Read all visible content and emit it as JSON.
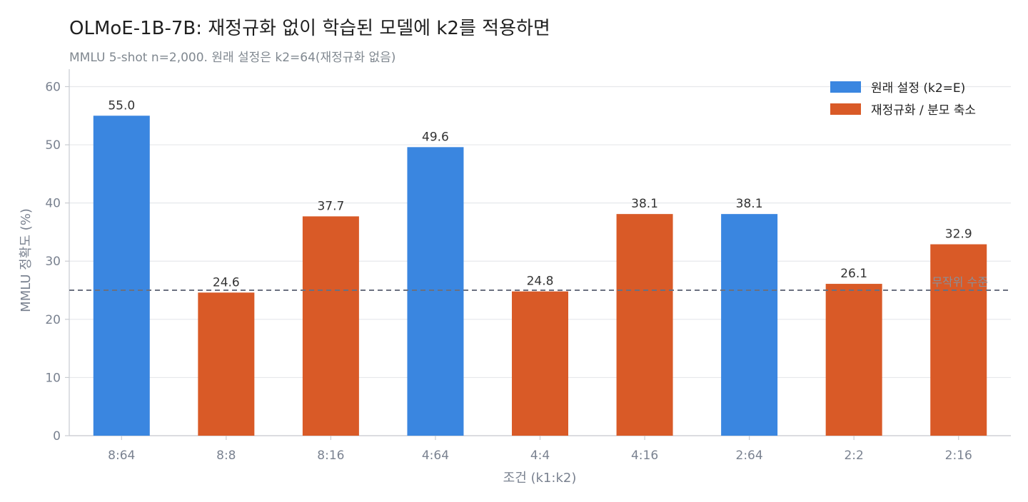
{
  "chart_data": {
    "type": "bar",
    "title": "OLMoE-1B-7B: 재정규화 없이 학습된 모델에 k2를 적용하면",
    "subtitle": "MMLU 5-shot n=2,000. 원래 설정은 k2=64(재정규화 없음)",
    "xlabel": "조건 (k1:k2)",
    "ylabel": "MMLU 정확도 (%)",
    "ylim": [
      0,
      63
    ],
    "yticks": [
      0,
      10,
      20,
      30,
      40,
      50,
      60
    ],
    "grid": "horizontal",
    "legend_position": "top-right",
    "categories": [
      "8:64",
      "8:8",
      "8:16",
      "4:64",
      "4:4",
      "4:16",
      "2:64",
      "2:2",
      "2:16"
    ],
    "values": [
      55.0,
      24.6,
      37.7,
      49.6,
      24.8,
      38.1,
      38.1,
      26.1,
      32.9
    ],
    "value_labels": [
      "55.0",
      "24.6",
      "37.7",
      "49.6",
      "24.8",
      "38.1",
      "38.1",
      "26.1",
      "32.9"
    ],
    "groups": [
      "original",
      "renorm",
      "renorm",
      "original",
      "renorm",
      "renorm",
      "original",
      "renorm",
      "renorm"
    ],
    "legend": [
      {
        "key": "original",
        "label": "원래 설정 (k2=E)",
        "color": "#3a86e0"
      },
      {
        "key": "renorm",
        "label": "재정규화 / 분모 축소",
        "color": "#d95a27"
      }
    ],
    "reference_line": {
      "value": 25,
      "label": "무작위 수준",
      "color": "#6b7080"
    }
  }
}
